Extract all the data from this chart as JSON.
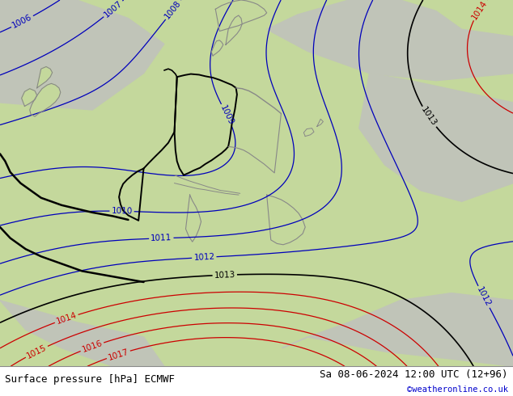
{
  "title_left": "Surface pressure [hPa] ECMWF",
  "title_right": "Sa 08-06-2024 12:00 UTC (12+96)",
  "copyright": "©weatheronline.co.uk",
  "bg_color": "#c8d8a8",
  "land_color_green": "#c8d8a0",
  "land_color_gray": "#c8c8c0",
  "border_color_thick": "#000000",
  "border_color_thin": "#888888",
  "contour_blue_color": "#0000bb",
  "contour_red_color": "#cc0000",
  "contour_black_color": "#000000",
  "label_fontsize": 7.5,
  "title_fontsize": 9,
  "copyright_fontsize": 7.5,
  "figsize": [
    6.34,
    4.9
  ],
  "dpi": 100,
  "footer_bg": "#ffffff",
  "footer_border": "#aaaaaa"
}
